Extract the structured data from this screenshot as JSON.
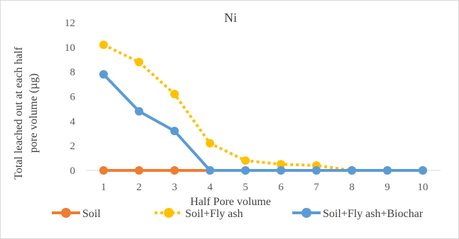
{
  "chart_data": {
    "type": "line",
    "title": "Ni",
    "xlabel": "Half Pore volume",
    "ylabel_line1": "Total leached out at each half",
    "ylabel_line2": "pore volume  (µg)",
    "x": [
      1,
      2,
      3,
      4,
      5,
      6,
      7,
      8,
      9,
      10
    ],
    "ylim": [
      0,
      12
    ],
    "yticks": [
      0,
      2,
      4,
      6,
      8,
      10,
      12
    ],
    "grid": false,
    "legend_position": "bottom",
    "series": [
      {
        "name": "Soil",
        "color": "#ED7D31",
        "style": "solid",
        "values": [
          0,
          0,
          0,
          0,
          0,
          0,
          0,
          0,
          0,
          0
        ]
      },
      {
        "name": "Soil+Fly ash",
        "color": "#FFC000",
        "style": "dotted",
        "values": [
          10.2,
          8.8,
          6.2,
          2.2,
          0.8,
          0.5,
          0.4,
          0,
          0,
          0
        ]
      },
      {
        "name": "Soil+Fly ash+Biochar",
        "color": "#5B9BD5",
        "style": "solid",
        "values": [
          7.8,
          4.8,
          3.2,
          0,
          0,
          0,
          0,
          0,
          0,
          0
        ]
      }
    ]
  }
}
